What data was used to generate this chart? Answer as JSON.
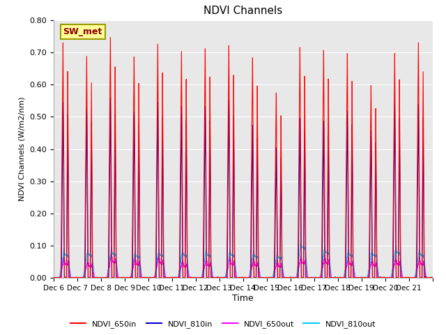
{
  "title": "NDVI Channels",
  "xlabel": "Time",
  "ylabel": "NDVI Channels (W/m2/nm)",
  "background_color": "#e8e8e8",
  "ylim": [
    0.0,
    0.8
  ],
  "yticks": [
    0.0,
    0.1,
    0.2,
    0.3,
    0.4,
    0.5,
    0.6,
    0.7,
    0.8
  ],
  "xtick_labels": [
    "Dec 6",
    "Dec 7",
    "Dec 8",
    "Dec 9",
    "Dec 10",
    "Dec 11",
    "Dec 12",
    "Dec 13",
    "Dec 14",
    "Dec 15",
    "Dec 16",
    "Dec 17",
    "Dec 18",
    "Dec 19",
    "Dec 20",
    "Dec 21"
  ],
  "legend_labels": [
    "NDVI_650in",
    "NDVI_810in",
    "NDVI_650out",
    "NDVI_810out"
  ],
  "legend_colors": [
    "#ff0000",
    "#0000cc",
    "#ff00ff",
    "#00ccff"
  ],
  "annotation_text": "SW_met",
  "annotation_color": "#8b0000",
  "annotation_bg": "#ffff99",
  "peak_650in": [
    0.73,
    0.69,
    0.75,
    0.69,
    0.73,
    0.71,
    0.72,
    0.73,
    0.69,
    0.58,
    0.72,
    0.71,
    0.7,
    0.6,
    0.7,
    0.73
  ],
  "peak_810in": [
    0.55,
    0.53,
    0.56,
    0.52,
    0.55,
    0.54,
    0.54,
    0.56,
    0.48,
    0.41,
    0.5,
    0.49,
    0.52,
    0.46,
    0.54,
    0.54
  ],
  "peak_650out": [
    0.065,
    0.055,
    0.075,
    0.065,
    0.07,
    0.055,
    0.06,
    0.065,
    0.06,
    0.055,
    0.07,
    0.07,
    0.065,
    0.06,
    0.065,
    0.065
  ],
  "peak_810out": [
    0.09,
    0.09,
    0.095,
    0.085,
    0.09,
    0.09,
    0.09,
    0.09,
    0.085,
    0.08,
    0.12,
    0.1,
    0.09,
    0.09,
    0.1,
    0.09
  ],
  "points_per_day": 500,
  "num_days": 16
}
